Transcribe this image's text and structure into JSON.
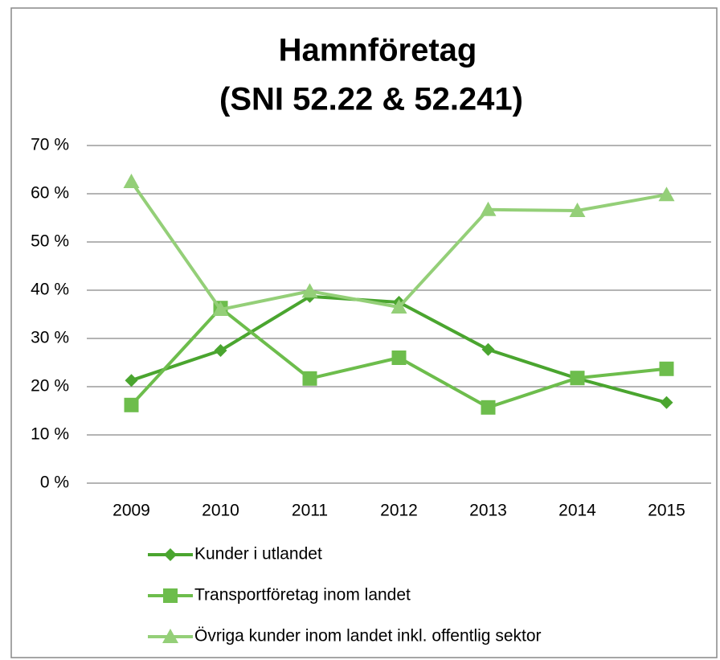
{
  "chart_data": {
    "type": "line",
    "title": [
      "Hamnföretag",
      "(SNI 52.22 & 52.241)"
    ],
    "categories": [
      "2009",
      "2010",
      "2011",
      "2012",
      "2013",
      "2014",
      "2015"
    ],
    "series": [
      {
        "name": "Kunder i utlandet",
        "color": "#4aa52f",
        "marker": "diamond",
        "values": [
          21.3,
          27.5,
          38.7,
          37.5,
          27.7,
          21.7,
          16.7
        ]
      },
      {
        "name": "Transportföretag inom landet",
        "color": "#6dbd4c",
        "marker": "square",
        "values": [
          16.2,
          36.3,
          21.7,
          26.0,
          15.7,
          21.8,
          23.7
        ]
      },
      {
        "name": "Övriga kunder inom landet inkl. offentlig sektor",
        "color": "#94cf78",
        "marker": "triangle",
        "values": [
          62.5,
          36.0,
          39.8,
          36.5,
          56.7,
          56.5,
          59.8
        ]
      }
    ],
    "ylim": [
      0,
      70
    ],
    "yticks": [
      {
        "value": 0,
        "label": "0 %"
      },
      {
        "value": 10,
        "label": "10 %"
      },
      {
        "value": 20,
        "label": "20 %"
      },
      {
        "value": 30,
        "label": "30 %"
      },
      {
        "value": 40,
        "label": "40 %"
      },
      {
        "value": 50,
        "label": "50 %"
      },
      {
        "value": 60,
        "label": "60 %"
      },
      {
        "value": 70,
        "label": "70 %"
      }
    ],
    "grid": true,
    "legend": "bottom"
  }
}
